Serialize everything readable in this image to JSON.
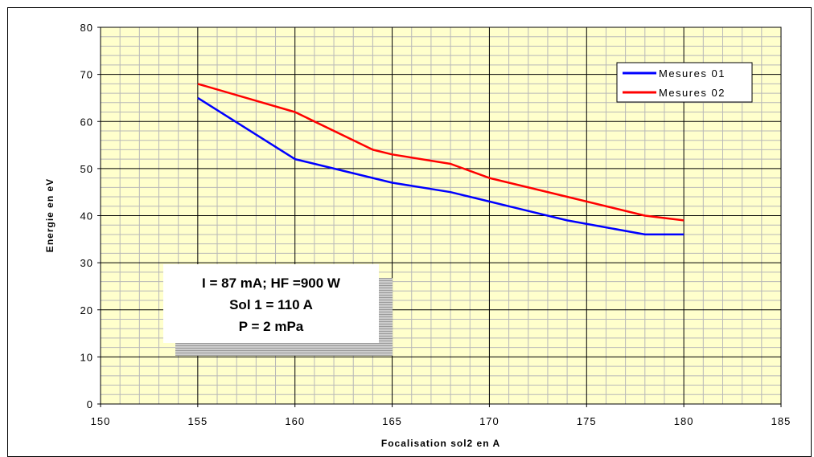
{
  "chart_data": {
    "type": "line",
    "title": "",
    "xlabel": "Focalisation sol2 en A",
    "ylabel": "Energie en eV",
    "xlim": [
      150,
      185
    ],
    "ylim": [
      0,
      80
    ],
    "x_ticks": [
      "150",
      "155",
      "160",
      "165",
      "170",
      "175",
      "180",
      "185"
    ],
    "y_ticks": [
      "0",
      "10",
      "20",
      "30",
      "40",
      "50",
      "60",
      "70",
      "80"
    ],
    "grid": true,
    "legend_position": "top-right",
    "series": [
      {
        "name": "Mesures 01",
        "color": "#0000ff",
        "x": [
          155,
          160,
          165,
          168,
          170,
          174,
          178,
          180
        ],
        "y": [
          65,
          52,
          47,
          45,
          43,
          39,
          36,
          36
        ]
      },
      {
        "name": "Mesures 02",
        "color": "#ff0000",
        "x": [
          155,
          160,
          164,
          165,
          168,
          170,
          174,
          178,
          180
        ],
        "y": [
          68,
          62,
          54,
          53,
          51,
          48,
          44,
          40,
          39
        ]
      }
    ],
    "annotation": {
      "lines": [
        "I = 87 mA; HF =900 W",
        "Sol 1 = 110 A",
        "P = 2 mPa"
      ]
    },
    "colors": {
      "plot_background": "#ffffcc",
      "major_grid": "#000000",
      "minor_grid": "#b8b8b8"
    }
  }
}
